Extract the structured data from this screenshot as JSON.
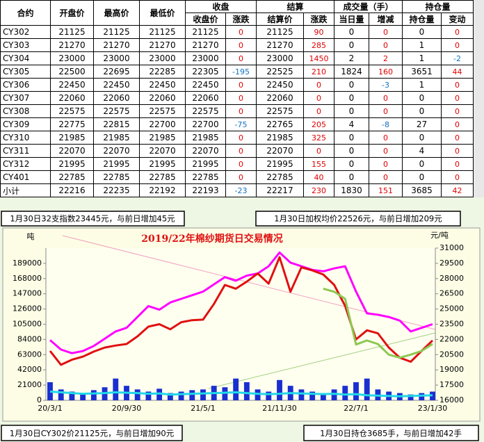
{
  "table": {
    "header": {
      "top": [
        "合约",
        "开盘价",
        "最高价",
        "最低价",
        "收盘",
        "结算",
        "成交量（手）",
        "持仓量"
      ],
      "sub": [
        "收盘价",
        "涨跌",
        "结算价",
        "涨跌",
        "当日量",
        "增减",
        "持仓量",
        "变动"
      ]
    },
    "rows": [
      [
        "CY302",
        21125,
        21125,
        21125,
        21125,
        0,
        21125,
        90,
        0,
        0,
        0,
        0
      ],
      [
        "CY303",
        21270,
        21270,
        21270,
        21270,
        0,
        21270,
        285,
        0,
        0,
        1,
        0
      ],
      [
        "CY304",
        23000,
        23000,
        23000,
        23000,
        0,
        23000,
        1450,
        2,
        2,
        1,
        -2
      ],
      [
        "CY305",
        22500,
        22695,
        22285,
        22305,
        -195,
        22525,
        210,
        1824,
        160,
        3651,
        44
      ],
      [
        "CY306",
        22450,
        22450,
        22450,
        22450,
        0,
        22450,
        0,
        0,
        -3,
        1,
        0
      ],
      [
        "CY307",
        22060,
        22060,
        22060,
        22060,
        0,
        22060,
        0,
        0,
        0,
        0,
        0
      ],
      [
        "CY308",
        22575,
        22575,
        22575,
        22575,
        0,
        22575,
        0,
        0,
        0,
        0,
        0
      ],
      [
        "CY309",
        22775,
        22815,
        22700,
        22700,
        -75,
        22765,
        205,
        4,
        -8,
        27,
        0
      ],
      [
        "CY310",
        21985,
        21985,
        21985,
        21985,
        0,
        21985,
        325,
        0,
        0,
        0,
        0
      ],
      [
        "CY311",
        22070,
        22070,
        22070,
        22070,
        0,
        22070,
        0,
        0,
        0,
        4,
        0
      ],
      [
        "CY312",
        21995,
        21995,
        21995,
        21995,
        0,
        21995,
        155,
        0,
        0,
        0,
        0
      ],
      [
        "CY401",
        22785,
        22785,
        22785,
        22785,
        0,
        22785,
        40,
        0,
        0,
        0,
        0
      ],
      [
        "小计",
        22216,
        22235,
        22192,
        22193,
        -23,
        22217,
        230,
        1830,
        151,
        3685,
        42
      ]
    ]
  },
  "annotations": [
    "1月30日32支指数23445元，与前日增加45元",
    "1月30日加权均价22526元，与前日增加209元",
    "1月30日CY302价21125元，与前日增加90元",
    "1月30日持仓3685手，与前日增加42手"
  ],
  "chart_data": {
    "type": "line",
    "title": "2019/22年棉纱期货日交易情况",
    "ylabel": "吨",
    "y2label": "元/吨",
    "categories": [
      "20/3/1",
      null,
      null,
      null,
      null,
      null,
      null,
      "20/9/30",
      null,
      null,
      null,
      null,
      null,
      null,
      "21/5/1",
      null,
      null,
      null,
      null,
      null,
      null,
      "21/11/30",
      null,
      null,
      null,
      null,
      null,
      null,
      "22/7/1",
      null,
      null,
      null,
      null,
      null,
      null,
      "23/1/30"
    ],
    "ylim": [
      0,
      210000
    ],
    "yticks": [
      0,
      21000,
      42000,
      63000,
      84000,
      105000,
      126000,
      147000,
      168000,
      189000
    ],
    "y2lim": [
      16000,
      31000
    ],
    "y2ticks": [
      16000,
      17500,
      19000,
      20500,
      22000,
      23500,
      25000,
      26500,
      28000,
      29500,
      31000
    ],
    "grid": false,
    "series": [
      {
        "type": "bar",
        "color": "#1a2fd0",
        "values": [
          25000,
          15000,
          12000,
          10000,
          14000,
          18000,
          30000,
          20000,
          15000,
          12000,
          16000,
          10000,
          12000,
          14000,
          15000,
          20000,
          18000,
          30000,
          25000,
          15000,
          12000,
          28000,
          20000,
          15000,
          12000,
          10000,
          15000,
          20000,
          25000,
          30000,
          15000,
          12000,
          10000,
          8000,
          10000,
          12000
        ]
      },
      {
        "type": "line",
        "color": "#22d8e8",
        "values": [
          12000,
          11000,
          10000,
          9000,
          9500,
          10000,
          11000,
          10500,
          10000,
          9000,
          9500,
          8000,
          8500,
          9000,
          9500,
          10000,
          10500,
          11000,
          10000,
          9000,
          8500,
          9000,
          10000,
          9500,
          9000,
          8500,
          9000,
          8000,
          8500,
          7000,
          6500,
          6000,
          5500,
          6000,
          6500,
          7000
        ]
      },
      {
        "type": "line",
        "color": "#ff00ff",
        "values": [
          83000,
          70000,
          65000,
          68000,
          75000,
          85000,
          95000,
          100000,
          115000,
          130000,
          125000,
          135000,
          140000,
          145000,
          150000,
          160000,
          170000,
          165000,
          172000,
          175000,
          185000,
          204000,
          190000,
          185000,
          180000,
          178000,
          182000,
          185000,
          150000,
          120000,
          118000,
          115000,
          110000,
          95000,
          100000,
          105000
        ]
      },
      {
        "type": "line",
        "axis": "y2",
        "color": "#e01010",
        "values": [
          20860,
          19500,
          20000,
          20300,
          20800,
          21200,
          21400,
          21550,
          22300,
          23260,
          23500,
          23000,
          23700,
          23900,
          23950,
          25500,
          27370,
          27000,
          27700,
          28500,
          27500,
          30100,
          26700,
          29100,
          28800,
          28400,
          27370,
          25300,
          22000,
          22900,
          22600,
          21200,
          20200,
          19800,
          20860,
          21900
        ]
      },
      {
        "type": "line",
        "axis": "y2",
        "color": "#8cc850",
        "values": [
          null,
          null,
          null,
          null,
          null,
          null,
          null,
          null,
          null,
          null,
          null,
          null,
          null,
          null,
          null,
          null,
          null,
          null,
          null,
          null,
          null,
          null,
          null,
          null,
          null,
          27000,
          26700,
          26000,
          21500,
          21900,
          21550,
          20500,
          20200,
          20500,
          20860,
          21550
        ]
      }
    ]
  }
}
